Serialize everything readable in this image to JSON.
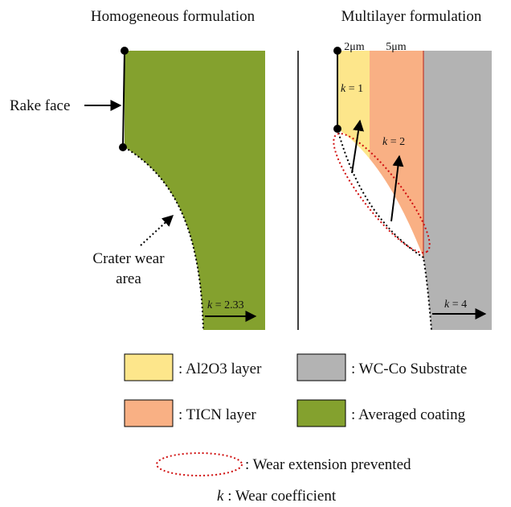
{
  "panels": {
    "left_title": "Homogeneous formulation",
    "right_title": "Multilayer formulation"
  },
  "left": {
    "rake_face": "Rake face",
    "crater_line1": "Crater wear",
    "crater_line2": "area",
    "k_symbol": "k",
    "k_value": "= 2.33"
  },
  "right": {
    "layer1_thickness": "2μm",
    "layer2_thickness": "5μm",
    "k1_symbol": "k",
    "k1_value": "= 1",
    "k2_symbol": "k",
    "k2_value": "= 2",
    "k4_symbol": "k",
    "k4_value": "= 4"
  },
  "legend": {
    "al2o3": ": Al2O3 layer",
    "substrate": ": WC-Co Substrate",
    "ticn": ": TICN layer",
    "averaged": ": Averaged coating",
    "prevented": ": Wear extension prevented",
    "k_symbol": "k",
    "k_desc": ": Wear coefficient"
  }
}
